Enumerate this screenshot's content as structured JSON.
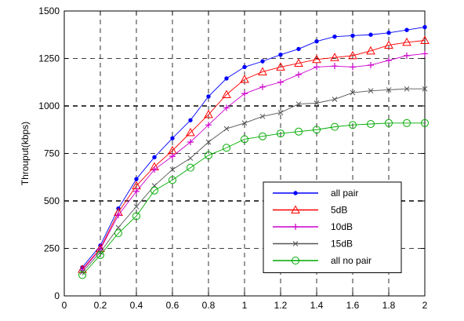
{
  "chart_data": {
    "type": "line",
    "ylabel": "Throuput(kbps)",
    "xlabel": "",
    "xlim": [
      0,
      2
    ],
    "ylim": [
      0,
      1500
    ],
    "x_ticks": [
      0,
      0.2,
      0.4,
      0.6,
      0.8,
      1,
      1.2,
      1.4,
      1.6,
      1.8,
      2
    ],
    "y_ticks": [
      0,
      250,
      500,
      750,
      1000,
      1250,
      1500
    ],
    "x_tick_labels": [
      "0",
      "0.2",
      "0.4",
      "0.6",
      "0.8",
      "1",
      "1.2",
      "1.4",
      "1.6",
      "1.8",
      "2"
    ],
    "y_tick_labels": [
      "0",
      "250",
      "500",
      "750",
      "1000",
      "1250",
      "1500"
    ],
    "grid": true,
    "legend_position": "lower-right",
    "x": [
      0.1,
      0.2,
      0.3,
      0.4,
      0.5,
      0.6,
      0.7,
      0.8,
      0.9,
      1.0,
      1.1,
      1.2,
      1.3,
      1.4,
      1.5,
      1.6,
      1.7,
      1.8,
      1.9,
      2.0
    ],
    "series": [
      {
        "name": "all pair",
        "color": "#0000ff",
        "marker": "dot",
        "values": [
          150,
          265,
          460,
          615,
          730,
          830,
          925,
          1050,
          1145,
          1205,
          1235,
          1270,
          1300,
          1340,
          1365,
          1370,
          1375,
          1385,
          1400,
          1415
        ]
      },
      {
        "name": "5dB",
        "color": "#ff0000",
        "marker": "triangle",
        "values": [
          140,
          250,
          440,
          580,
          680,
          765,
          860,
          955,
          1060,
          1140,
          1180,
          1205,
          1225,
          1245,
          1255,
          1265,
          1290,
          1320,
          1335,
          1345
        ]
      },
      {
        "name": "10dB",
        "color": "#cc00cc",
        "marker": "plus",
        "values": [
          135,
          245,
          425,
          550,
          665,
          735,
          810,
          900,
          990,
          1065,
          1100,
          1125,
          1165,
          1205,
          1210,
          1205,
          1215,
          1240,
          1265,
          1275
        ]
      },
      {
        "name": "15dB",
        "color": "#555555",
        "marker": "x",
        "values": [
          125,
          230,
          360,
          470,
          580,
          665,
          725,
          810,
          880,
          910,
          945,
          965,
          1010,
          1015,
          1035,
          1070,
          1080,
          1085,
          1090,
          1090
        ]
      },
      {
        "name": "all no pair",
        "color": "#00aa00",
        "marker": "circle",
        "values": [
          110,
          215,
          330,
          420,
          555,
          610,
          675,
          740,
          780,
          825,
          840,
          855,
          865,
          875,
          890,
          900,
          905,
          910,
          910,
          910
        ]
      }
    ]
  }
}
